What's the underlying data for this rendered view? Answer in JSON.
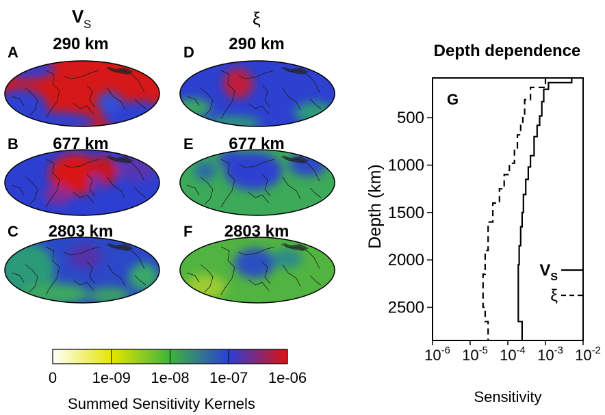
{
  "column_headers": {
    "vs": "V",
    "vs_sub": "S",
    "xi": "ξ"
  },
  "maps": [
    {
      "letter": "A",
      "depth_label": "290 km",
      "parameter": "Vs"
    },
    {
      "letter": "B",
      "depth_label": "677 km",
      "parameter": "Vs"
    },
    {
      "letter": "C",
      "depth_label": "2803 km",
      "parameter": "Vs"
    },
    {
      "letter": "D",
      "depth_label": "290 km",
      "parameter": "xi"
    },
    {
      "letter": "E",
      "depth_label": "677 km",
      "parameter": "xi"
    },
    {
      "letter": "F",
      "depth_label": "2803 km",
      "parameter": "xi"
    }
  ],
  "colorbar": {
    "ticks": [
      "0",
      "1e-09",
      "1e-08",
      "1e-07",
      "1e-06"
    ],
    "label": "Summed Sensitivity Kernels",
    "colors": [
      "#ffffff",
      "#e6e600",
      "#3cb43c",
      "#2a3fd8",
      "#e01010"
    ]
  },
  "chart_data": {
    "type": "line",
    "title": "Depth dependence",
    "panel_label": "G",
    "xlabel": "Sensitivity",
    "ylabel": "Depth (km)",
    "x_scale": "log",
    "xlim": [
      1e-06,
      0.01
    ],
    "ylim": [
      2850,
      80
    ],
    "x_ticks": [
      {
        "base": "10",
        "exp": "-6"
      },
      {
        "base": "10",
        "exp": "-5"
      },
      {
        "base": "10",
        "exp": "-4"
      },
      {
        "base": "10",
        "exp": "-3"
      },
      {
        "base": "10",
        "exp": "-2"
      }
    ],
    "y_ticks": [
      "500",
      "1000",
      "1500",
      "2000",
      "2500"
    ],
    "legend_placement": "bottom-right",
    "series": [
      {
        "name": "V",
        "name_sub": "S",
        "style": "solid",
        "depth": [
          80,
          130,
          130,
          200,
          200,
          330,
          330,
          480,
          480,
          580,
          580,
          700,
          700,
          900,
          900,
          1020,
          1020,
          1150,
          1150,
          1310,
          1310,
          1500,
          1500,
          1650,
          1650,
          1850,
          1850,
          2050,
          2050,
          2650,
          2650,
          2850
        ],
        "sensitivity": [
          0.005,
          0.005,
          0.0012,
          0.0012,
          0.0009,
          0.0009,
          0.0008,
          0.0008,
          0.0007,
          0.0007,
          0.0006,
          0.0006,
          0.0005,
          0.0005,
          0.0004,
          0.0004,
          0.00035,
          0.00035,
          0.0003,
          0.0003,
          0.00026,
          0.00026,
          0.00024,
          0.00024,
          0.00022,
          0.00022,
          0.0002,
          0.0002,
          0.00019,
          0.00019,
          0.00024,
          0.00024
        ]
      },
      {
        "name": "ξ",
        "style": "dashed",
        "depth": [
          80,
          180,
          180,
          310,
          310,
          460,
          460,
          580,
          580,
          680,
          680,
          820,
          820,
          980,
          980,
          1100,
          1100,
          1250,
          1250,
          1400,
          1400,
          1600,
          1600,
          1900,
          1900,
          2150,
          2150,
          2500,
          2500,
          2650,
          2650,
          2850
        ],
        "sensitivity": [
          0.001,
          0.001,
          0.0004,
          0.0004,
          0.00028,
          0.00028,
          0.00025,
          0.00025,
          0.00022,
          0.00022,
          0.00018,
          0.00018,
          0.00015,
          0.00015,
          0.00011,
          0.00011,
          8e-05,
          8e-05,
          6e-05,
          6e-05,
          4e-05,
          4e-05,
          3e-05,
          3e-05,
          2.5e-05,
          2.5e-05,
          2.2e-05,
          2.2e-05,
          2.5e-05,
          2.5e-05,
          3e-05,
          3e-05
        ]
      }
    ]
  }
}
